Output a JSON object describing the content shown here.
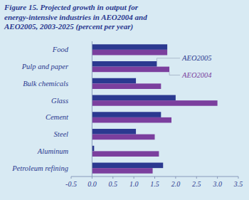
{
  "chart_data": {
    "type": "bar",
    "orientation": "horizontal",
    "title": "Figure 15. Projected growth in output for\nenergy-intensive industries in AEO2004 and\nAEO2005, 2003-2025 (percent per year)",
    "categories": [
      "Food",
      "Pulp and paper",
      "Bulk chemicals",
      "Glass",
      "Cement",
      "Steel",
      "Aluminum",
      "Petroleum refining"
    ],
    "series": [
      {
        "name": "AEO2005",
        "color": "#2b3990",
        "values": [
          1.8,
          1.55,
          1.05,
          2.0,
          1.65,
          1.05,
          0.05,
          1.7
        ]
      },
      {
        "name": "AEO2004",
        "color": "#7b3f9e",
        "values": [
          1.8,
          1.85,
          1.65,
          3.0,
          1.9,
          1.5,
          1.6,
          1.45
        ]
      }
    ],
    "xlim": [
      -0.5,
      3.5
    ],
    "xticks": [
      -0.5,
      {
        "value": 0.0,
        "label": "0.0"
      },
      0.5,
      {
        "value": 1.0,
        "label": "1.0"
      },
      1.5,
      {
        "value": 2.0,
        "label": "2.0"
      },
      2.5,
      {
        "value": 3.0,
        "label": "3.0"
      },
      3.5
    ],
    "grid": false
  }
}
